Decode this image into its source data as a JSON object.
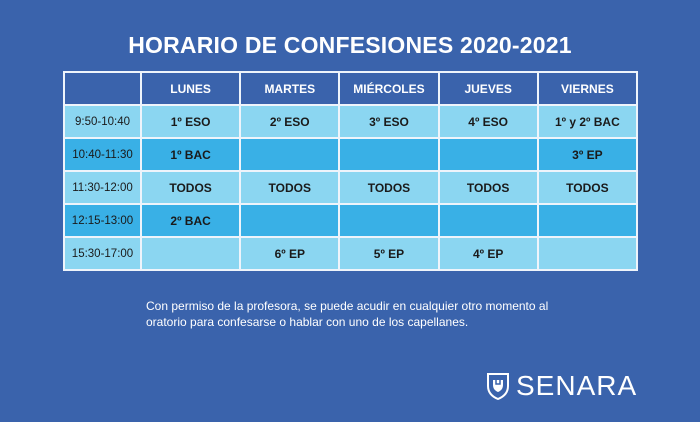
{
  "title": "HORARIO DE CONFESIONES 2020-2021",
  "table": {
    "headers": [
      "",
      "LUNES",
      "MARTES",
      "MIÉRCOLES",
      "JUEVES",
      "VIERNES"
    ],
    "rows": [
      {
        "time": "9:50-10:40",
        "cells": [
          "1º ESO",
          "2º ESO",
          "3º ESO",
          "4º ESO",
          "1º y 2º BAC"
        ]
      },
      {
        "time": "10:40-11:30",
        "cells": [
          "1º BAC",
          "",
          "",
          "",
          "3º EP"
        ]
      },
      {
        "time": "11:30-12:00",
        "cells": [
          "TODOS",
          "TODOS",
          "TODOS",
          "TODOS",
          "TODOS"
        ]
      },
      {
        "time": "12:15-13:00",
        "cells": [
          "2º BAC",
          "",
          "",
          "",
          ""
        ]
      },
      {
        "time": "15:30-17:00",
        "cells": [
          "",
          "6º EP",
          "5º EP",
          "4º EP",
          ""
        ]
      }
    ]
  },
  "note": "Con permiso de la profesora, se puede acudir en cualquier otro momento al oratorio para confesarse o hablar con uno de los capellanes.",
  "logo": {
    "name": "SENARA",
    "icon": "shield-icon"
  },
  "colors": {
    "background": "#3a63ac",
    "row_light": "#8bd6f1",
    "row_dark": "#39b0e6",
    "border": "#eef4fb",
    "text_light": "#ffffff"
  }
}
